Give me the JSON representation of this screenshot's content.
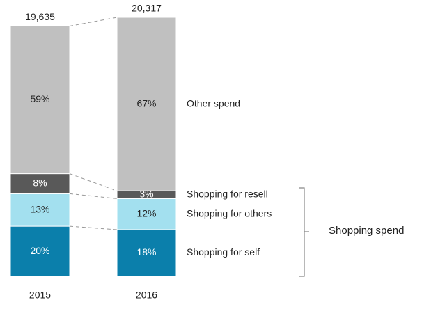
{
  "chart_data": {
    "type": "stacked_bar_percent",
    "categories": [
      "2015",
      "2016"
    ],
    "totals": {
      "values": [
        19635,
        20317
      ],
      "value_labels": [
        "19,635",
        "20,317"
      ]
    },
    "series": [
      {
        "name": "Shopping for self",
        "color": "#0b7fab",
        "label_color": "#ffffff",
        "values": [
          20,
          18
        ],
        "value_labels": [
          "20%",
          "18%"
        ]
      },
      {
        "name": "Shopping for others",
        "color": "#a3e0ef",
        "label_color": "#222222",
        "values": [
          13,
          12
        ],
        "value_labels": [
          "13%",
          "12%"
        ]
      },
      {
        "name": "Shopping for resell",
        "color": "#595959",
        "label_color": "#ffffff",
        "values": [
          8,
          3
        ],
        "value_labels": [
          "8%",
          "3%"
        ]
      },
      {
        "name": "Other spend",
        "color": "#c0c0c0",
        "label_color": "#222222",
        "values": [
          59,
          67
        ],
        "value_labels": [
          "59%",
          "67%"
        ]
      }
    ],
    "group_label": "Shopping spend"
  }
}
